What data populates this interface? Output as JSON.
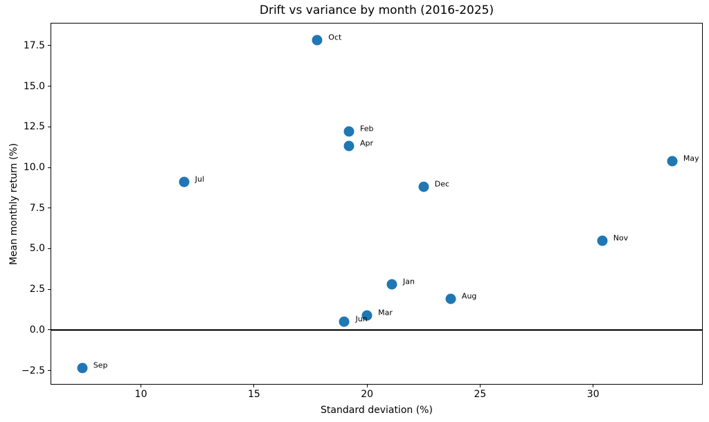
{
  "chart_data": {
    "type": "scatter",
    "title": "Drift vs variance by month (2016-2025)",
    "xlabel": "Standard deviation (%)",
    "ylabel": "Mean monthly return (%)",
    "xlim": [
      6.0,
      34.85
    ],
    "ylim": [
      -3.37,
      18.9
    ],
    "xticks": [
      10,
      15,
      20,
      25,
      30
    ],
    "yticks": [
      -2.5,
      0.0,
      2.5,
      5.0,
      7.5,
      10.0,
      12.5,
      15.0,
      17.5
    ],
    "grid": false,
    "legend": "none",
    "marker_color": "#1f77b4",
    "zero_line_y": 0,
    "points": [
      {
        "label": "Jan",
        "x": 21.1,
        "y": 2.8
      },
      {
        "label": "Feb",
        "x": 19.2,
        "y": 12.2
      },
      {
        "label": "Mar",
        "x": 20.0,
        "y": 0.9
      },
      {
        "label": "Apr",
        "x": 19.2,
        "y": 11.3
      },
      {
        "label": "May",
        "x": 33.5,
        "y": 10.4
      },
      {
        "label": "Jun",
        "x": 19.0,
        "y": 0.5
      },
      {
        "label": "Jul",
        "x": 11.9,
        "y": 9.1
      },
      {
        "label": "Aug",
        "x": 23.7,
        "y": 1.9
      },
      {
        "label": "Sep",
        "x": 7.4,
        "y": -2.35
      },
      {
        "label": "Oct",
        "x": 17.8,
        "y": 17.85
      },
      {
        "label": "Nov",
        "x": 30.4,
        "y": 5.5
      },
      {
        "label": "Dec",
        "x": 22.5,
        "y": 8.8
      }
    ]
  }
}
